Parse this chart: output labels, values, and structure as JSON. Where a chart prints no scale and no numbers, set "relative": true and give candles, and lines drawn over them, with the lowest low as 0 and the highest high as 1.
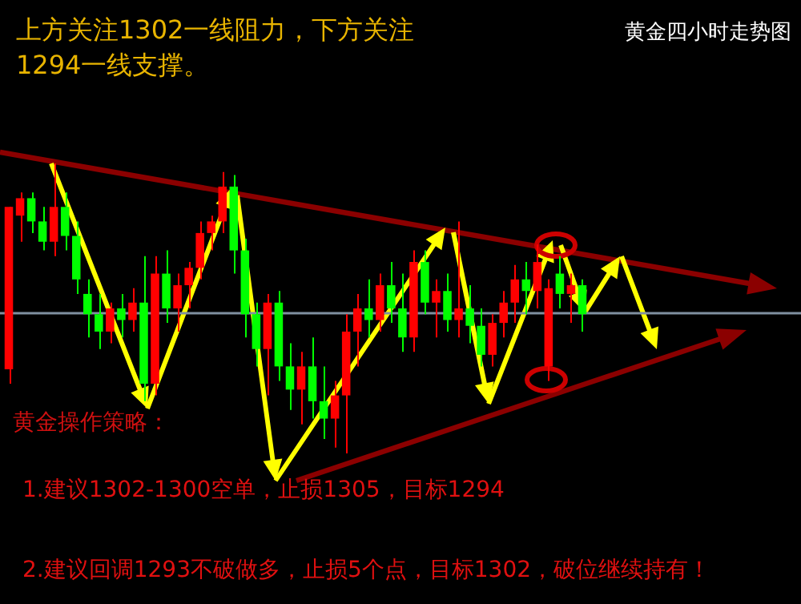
{
  "chart_data": {
    "type": "candlestick",
    "title": "上方关注1302一线阻力，下方关注1294一线支撑。",
    "subtitle": "黄金四小时走势图",
    "relative": true,
    "tick_labels": false,
    "categories": [
      null,
      null,
      null,
      null,
      null,
      null,
      null,
      null,
      null,
      null,
      null,
      null,
      null,
      null,
      null,
      null,
      null,
      null,
      null,
      null,
      null,
      null,
      null,
      null,
      null,
      null,
      null,
      null,
      null,
      null,
      null,
      null,
      null,
      null,
      null,
      null,
      null,
      null,
      null,
      null,
      null,
      null,
      null,
      null,
      null,
      null,
      null,
      null,
      null,
      null,
      null,
      null
    ],
    "ohlc": [
      [
        0.29,
        0.85,
        0.24,
        0.85
      ],
      [
        0.82,
        0.9,
        0.73,
        0.88
      ],
      [
        0.88,
        0.9,
        0.76,
        0.8
      ],
      [
        0.8,
        0.85,
        0.7,
        0.73
      ],
      [
        0.73,
        1.0,
        0.68,
        0.85
      ],
      [
        0.85,
        0.9,
        0.7,
        0.75
      ],
      [
        0.75,
        0.8,
        0.55,
        0.6
      ],
      [
        0.55,
        0.6,
        0.4,
        0.48
      ],
      [
        0.48,
        0.55,
        0.36,
        0.42
      ],
      [
        0.42,
        0.52,
        0.38,
        0.5
      ],
      [
        0.5,
        0.55,
        0.4,
        0.46
      ],
      [
        0.46,
        0.57,
        0.42,
        0.52
      ],
      [
        0.52,
        0.68,
        0.18,
        0.24
      ],
      [
        0.24,
        0.68,
        0.2,
        0.62
      ],
      [
        0.62,
        0.7,
        0.45,
        0.5
      ],
      [
        0.5,
        0.62,
        0.42,
        0.58
      ],
      [
        0.58,
        0.66,
        0.5,
        0.64
      ],
      [
        0.64,
        0.8,
        0.6,
        0.76
      ],
      [
        0.76,
        0.82,
        0.7,
        0.8
      ],
      [
        0.8,
        0.97,
        0.76,
        0.92
      ],
      [
        0.92,
        0.96,
        0.62,
        0.7
      ],
      [
        0.7,
        0.74,
        0.4,
        0.48
      ],
      [
        0.48,
        0.52,
        0.3,
        0.36
      ],
      [
        0.36,
        0.55,
        0.2,
        0.52
      ],
      [
        0.52,
        0.56,
        0.25,
        0.3
      ],
      [
        0.3,
        0.38,
        0.15,
        0.22
      ],
      [
        0.22,
        0.35,
        0.1,
        0.3
      ],
      [
        0.3,
        0.4,
        0.12,
        0.18
      ],
      [
        0.18,
        0.3,
        0.05,
        0.12
      ],
      [
        0.12,
        0.25,
        0.02,
        0.2
      ],
      [
        0.2,
        0.48,
        0.0,
        0.42
      ],
      [
        0.42,
        0.55,
        0.3,
        0.5
      ],
      [
        0.5,
        0.6,
        0.4,
        0.46
      ],
      [
        0.46,
        0.62,
        0.42,
        0.58
      ],
      [
        0.58,
        0.66,
        0.45,
        0.5
      ],
      [
        0.5,
        0.62,
        0.35,
        0.4
      ],
      [
        0.4,
        0.7,
        0.35,
        0.66
      ],
      [
        0.66,
        0.7,
        0.48,
        0.52
      ],
      [
        0.52,
        0.6,
        0.4,
        0.56
      ],
      [
        0.56,
        0.62,
        0.42,
        0.46
      ],
      [
        0.46,
        0.8,
        0.4,
        0.5
      ],
      [
        0.5,
        0.58,
        0.38,
        0.44
      ],
      [
        0.44,
        0.5,
        0.3,
        0.34
      ],
      [
        0.34,
        0.48,
        0.3,
        0.45
      ],
      [
        0.45,
        0.56,
        0.4,
        0.52
      ],
      [
        0.52,
        0.65,
        0.45,
        0.6
      ],
      [
        0.6,
        0.66,
        0.48,
        0.56
      ],
      [
        0.56,
        0.72,
        0.5,
        0.66
      ],
      [
        0.3,
        0.6,
        0.25,
        0.57
      ],
      [
        0.62,
        0.68,
        0.5,
        0.55
      ],
      [
        0.55,
        0.62,
        0.45,
        0.58
      ],
      [
        0.58,
        0.6,
        0.42,
        0.48
      ]
    ],
    "colors": [
      "#ff0000",
      "#ff0000",
      "#00ff00",
      "#00ff00",
      "#ff0000",
      "#00ff00",
      "#00ff00",
      "#00ff00",
      "#00ff00",
      "#ff0000",
      "#00ff00",
      "#ff0000",
      "#00ff00",
      "#ff0000",
      "#00ff00",
      "#ff0000",
      "#ff0000",
      "#ff0000",
      "#ff0000",
      "#ff0000",
      "#00ff00",
      "#00ff00",
      "#00ff00",
      "#ff0000",
      "#00ff00",
      "#00ff00",
      "#ff0000",
      "#00ff00",
      "#00ff00",
      "#ff0000",
      "#ff0000",
      "#ff0000",
      "#00ff00",
      "#ff0000",
      "#00ff00",
      "#00ff00",
      "#ff0000",
      "#00ff00",
      "#ff0000",
      "#00ff00",
      "#ff0000",
      "#00ff00",
      "#00ff00",
      "#ff0000",
      "#ff0000",
      "#ff0000",
      "#00ff00",
      "#ff0000",
      "#ff0000",
      "#00ff00",
      "#ff0000",
      "#00ff00"
    ],
    "ref_lines": [
      {
        "axis": "y",
        "value": 0.486,
        "color": "#8090a0"
      }
    ],
    "annotations": [
      "黄金操作策略：",
      "1.建议1302-1300空单，止损1305，目标1294",
      "2.建议回调1293不破做多，止损5个点，目标1302，破位继续持有！"
    ]
  }
}
